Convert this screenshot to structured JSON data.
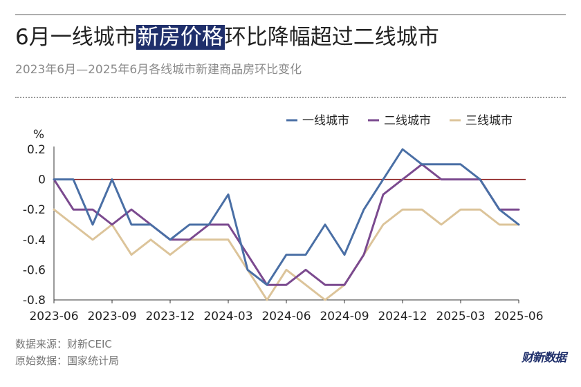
{
  "header": {
    "title_pre": "6月一线城市",
    "title_highlight": "新房价格",
    "title_post": "环比降幅超过二线城市",
    "subtitle": "2023年6月—2025年6月各线城市新建商品房环比变化"
  },
  "footer": {
    "source": "数据来源：财新CEIC",
    "origin": "原始数据：国家统计局",
    "brand": "财新数据"
  },
  "chart_data": {
    "type": "line",
    "title": "6月一线城市新房价格环比降幅超过二线城市",
    "subtitle": "2023年6月—2025年6月各线城市新建商品房环比变化",
    "ylabel": "%",
    "xlabel": "",
    "ylim": [
      -0.8,
      0.2
    ],
    "yticks": [
      0.2,
      0,
      -0.2,
      -0.4,
      -0.6,
      -0.8
    ],
    "ytick_labels": [
      "0.2",
      "0",
      "-0.2",
      "-0.4",
      "-0.6",
      "-0.8"
    ],
    "x": [
      "2023-06",
      "2023-07",
      "2023-08",
      "2023-09",
      "2023-10",
      "2023-11",
      "2023-12",
      "2024-01",
      "2024-02",
      "2024-03",
      "2024-04",
      "2024-05",
      "2024-06",
      "2024-07",
      "2024-08",
      "2024-09",
      "2024-10",
      "2024-11",
      "2024-12",
      "2025-01",
      "2025-02",
      "2025-03",
      "2025-04",
      "2025-05",
      "2025-06"
    ],
    "xtick_labels": [
      "2023-06",
      "2023-09",
      "2023-12",
      "2024-03",
      "2024-06",
      "2024-09",
      "2024-12",
      "2025-03",
      "2025-06"
    ],
    "grid": false,
    "legend_position": "top-right",
    "zero_line_color": "#8b1a1a",
    "series": [
      {
        "name": "一线城市",
        "color": "#4a6fa5",
        "values": [
          0,
          0,
          -0.3,
          0,
          -0.3,
          -0.3,
          -0.4,
          -0.3,
          -0.3,
          -0.1,
          -0.6,
          -0.7,
          -0.5,
          -0.5,
          -0.3,
          -0.5,
          -0.2,
          0,
          0.2,
          0.1,
          0.1,
          0.1,
          0,
          -0.2,
          -0.3
        ]
      },
      {
        "name": "二线城市",
        "color": "#7b4a8f",
        "values": [
          0,
          -0.2,
          -0.2,
          -0.3,
          -0.2,
          -0.3,
          -0.4,
          -0.4,
          -0.3,
          -0.3,
          -0.5,
          -0.7,
          -0.7,
          -0.6,
          -0.7,
          -0.7,
          -0.5,
          -0.1,
          0,
          0.1,
          0,
          0,
          0,
          -0.2,
          -0.2
        ]
      },
      {
        "name": "三线城市",
        "color": "#dcc49a",
        "values": [
          -0.2,
          -0.3,
          -0.4,
          -0.3,
          -0.5,
          -0.4,
          -0.5,
          -0.4,
          -0.4,
          -0.4,
          -0.6,
          -0.8,
          -0.6,
          -0.7,
          -0.8,
          -0.7,
          -0.5,
          -0.3,
          -0.2,
          -0.2,
          -0.3,
          -0.2,
          -0.2,
          -0.3,
          -0.3
        ]
      }
    ]
  }
}
